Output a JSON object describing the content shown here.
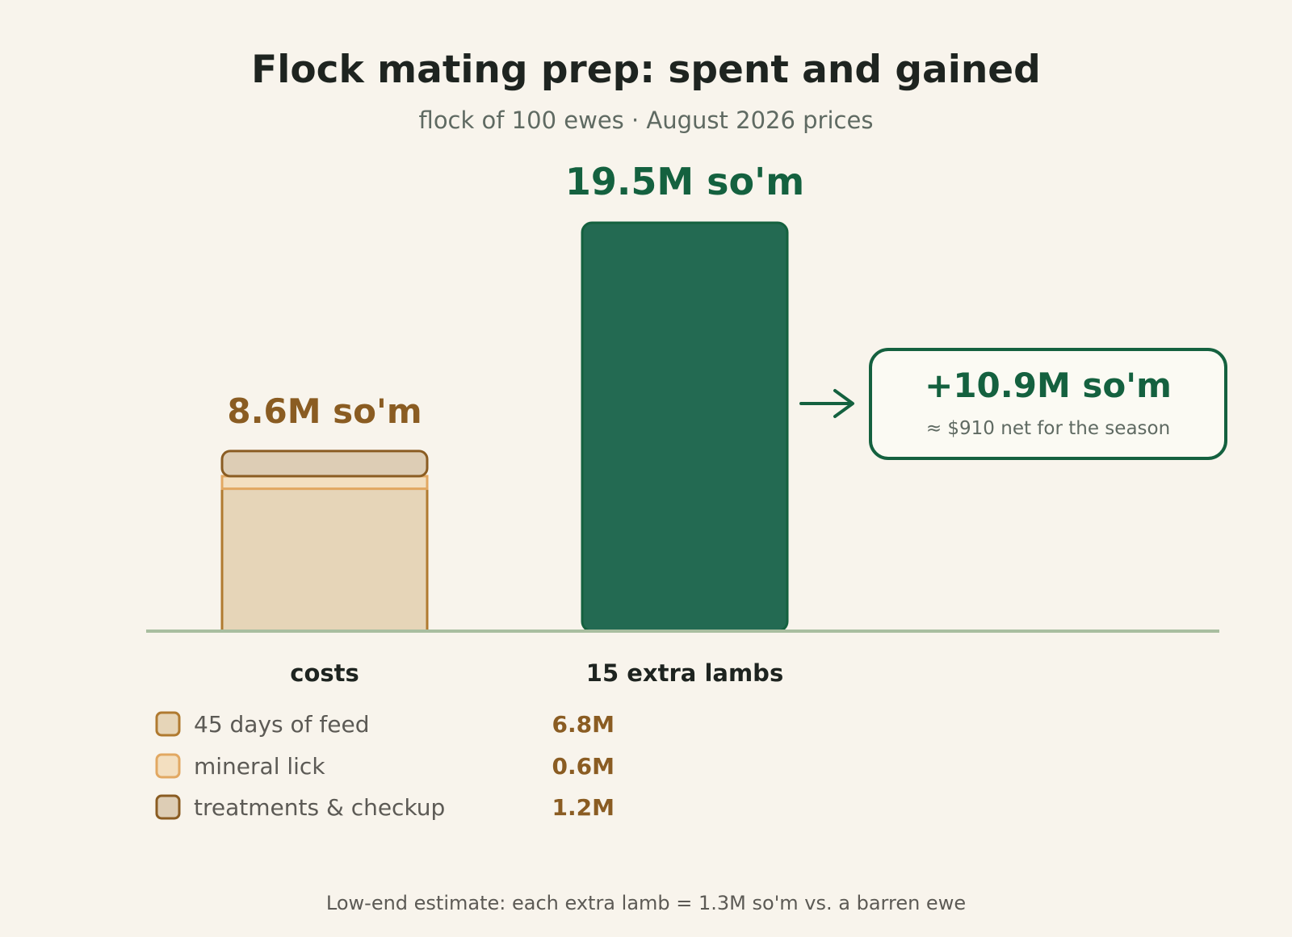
{
  "chart_data": {
    "type": "bar",
    "title": "Flock mating prep: spent and gained",
    "subtitle": "flock of 100 ewes · August 2026 prices",
    "colors": {
      "feed": "#e6d5b8",
      "mineral": "#f3dfc0",
      "treatments": "#ddcdb5",
      "cost_stroke": "#b07a30",
      "mineral_stroke": "#e2a862",
      "treatments_stroke": "#8a5c22",
      "gain": "#236a52",
      "gain_stroke": "#14613f",
      "baseline": "#a9bea0"
    },
    "units": "M so'm",
    "bars": [
      {
        "category": "costs",
        "total": 8.6,
        "total_label": "8.6M so'm",
        "segments": [
          {
            "name": "45 days of feed",
            "value": 6.8,
            "value_label": "6.8M",
            "color_key": "feed"
          },
          {
            "name": "mineral lick",
            "value": 0.6,
            "value_label": "0.6M",
            "color_key": "mineral"
          },
          {
            "name": "treatments & checkup",
            "value": 1.2,
            "value_label": "1.2M",
            "color_key": "treatments"
          }
        ]
      },
      {
        "category": "15 extra lambs",
        "total": 19.5,
        "total_label": "19.5M so'm"
      }
    ],
    "net": {
      "value": 10.9,
      "label": "+10.9M so'm",
      "sublabel": "≈ $910 net for the season"
    },
    "footnote": "Low-end estimate: each extra lamb = 1.3M so'm vs. a barren ewe",
    "ylim": [
      0,
      19.5
    ],
    "grid": false,
    "legend_position": "bottom-left"
  }
}
